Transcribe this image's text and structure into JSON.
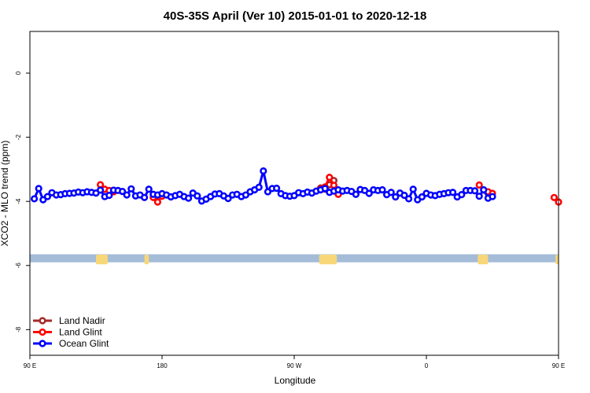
{
  "chart_data": {
    "type": "line",
    "title": "40S-35S April (Ver 10)   2015-01-01 to 2020-12-18",
    "xlabel": "Longitude",
    "ylabel": "XCO2 - MLO trend (ppm)",
    "xlim": [
      90,
      450
    ],
    "ylim": [
      -8.8,
      1.3
    ],
    "x_ticks": [
      {
        "value": 90,
        "label": "90 E"
      },
      {
        "value": 180,
        "label": "180"
      },
      {
        "value": 270,
        "label": "90 W"
      },
      {
        "value": 360,
        "label": "0"
      },
      {
        "value": 450,
        "label": "90 E"
      },
      {
        "value": 540,
        "label": "180"
      }
    ],
    "y_ticks": [
      {
        "value": 0,
        "label": "0"
      },
      {
        "value": -2,
        "label": "-2"
      },
      {
        "value": -4,
        "label": "-4"
      },
      {
        "value": -6,
        "label": "-6"
      },
      {
        "value": -8,
        "label": "-8"
      }
    ],
    "map_strip": {
      "ocean_color": "#a4bcd8",
      "land_color": "#f8d778",
      "y_range": [
        -5.9,
        -5.65
      ],
      "land_spans": [
        [
          135,
          143
        ],
        [
          168,
          171
        ],
        [
          287,
          299
        ],
        [
          395,
          402
        ],
        [
          448,
          450
        ]
      ]
    },
    "legend": {
      "position": "bottom-left"
    },
    "series": [
      {
        "name": "Land Nadir",
        "color": "#a52a2a",
        "segments": [
          [
            [
              288,
              -3.58
            ],
            [
              291,
              -3.62
            ],
            [
              294,
              -3.48
            ],
            [
              297,
              -3.35
            ],
            [
              300,
              -3.71
            ]
          ]
        ]
      },
      {
        "name": "Land Glint",
        "color": "#ff0000",
        "segments": [
          [
            [
              138,
              -3.48
            ],
            [
              141,
              -3.62
            ],
            [
              144,
              -3.66
            ],
            [
              147,
              -3.7
            ]
          ],
          [
            [
              174,
              -3.88
            ],
            [
              177,
              -4.02
            ],
            [
              180,
              -3.84
            ]
          ],
          [
            [
              288,
              -3.62
            ],
            [
              291,
              -3.55
            ],
            [
              294,
              -3.25
            ],
            [
              297,
              -3.5
            ],
            [
              300,
              -3.78
            ]
          ],
          [
            [
              396,
              -3.49
            ],
            [
              399,
              -3.65
            ],
            [
              402,
              -3.7
            ],
            [
              405,
              -3.75
            ]
          ],
          [
            [
              447,
              -3.88
            ],
            [
              450,
              -4.02
            ]
          ]
        ]
      },
      {
        "name": "Ocean Glint",
        "color": "#0000ff",
        "segments": [
          [
            [
              93,
              -3.92
            ],
            [
              96,
              -3.6
            ],
            [
              99,
              -3.95
            ],
            [
              102,
              -3.85
            ],
            [
              105,
              -3.73
            ],
            [
              108,
              -3.8
            ],
            [
              111,
              -3.79
            ],
            [
              114,
              -3.76
            ],
            [
              117,
              -3.75
            ],
            [
              120,
              -3.74
            ],
            [
              123,
              -3.71
            ],
            [
              126,
              -3.73
            ],
            [
              129,
              -3.7
            ],
            [
              132,
              -3.72
            ],
            [
              135,
              -3.74
            ],
            [
              138,
              -3.65
            ],
            [
              141,
              -3.85
            ],
            [
              144,
              -3.81
            ],
            [
              147,
              -3.65
            ],
            [
              150,
              -3.66
            ],
            [
              153,
              -3.69
            ],
            [
              156,
              -3.8
            ],
            [
              159,
              -3.61
            ],
            [
              162,
              -3.83
            ],
            [
              165,
              -3.8
            ],
            [
              168,
              -3.88
            ],
            [
              171,
              -3.62
            ],
            [
              174,
              -3.78
            ],
            [
              177,
              -3.8
            ],
            [
              180,
              -3.76
            ],
            [
              183,
              -3.8
            ],
            [
              186,
              -3.86
            ],
            [
              189,
              -3.82
            ],
            [
              192,
              -3.78
            ],
            [
              195,
              -3.85
            ],
            [
              198,
              -3.9
            ],
            [
              201,
              -3.74
            ],
            [
              204,
              -3.83
            ],
            [
              207,
              -3.99
            ],
            [
              210,
              -3.93
            ],
            [
              213,
              -3.85
            ],
            [
              216,
              -3.77
            ],
            [
              219,
              -3.76
            ],
            [
              222,
              -3.83
            ],
            [
              225,
              -3.91
            ],
            [
              228,
              -3.8
            ],
            [
              231,
              -3.78
            ],
            [
              234,
              -3.85
            ],
            [
              237,
              -3.8
            ],
            [
              240,
              -3.7
            ],
            [
              243,
              -3.64
            ],
            [
              246,
              -3.56
            ],
            [
              249,
              -3.05
            ],
            [
              252,
              -3.7
            ],
            [
              255,
              -3.6
            ],
            [
              258,
              -3.59
            ],
            [
              261,
              -3.76
            ],
            [
              264,
              -3.82
            ],
            [
              267,
              -3.84
            ],
            [
              270,
              -3.82
            ],
            [
              273,
              -3.73
            ],
            [
              276,
              -3.76
            ],
            [
              279,
              -3.71
            ],
            [
              282,
              -3.74
            ],
            [
              285,
              -3.68
            ],
            [
              288,
              -3.64
            ],
            [
              291,
              -3.6
            ],
            [
              294,
              -3.72
            ],
            [
              297,
              -3.68
            ],
            [
              300,
              -3.64
            ],
            [
              303,
              -3.68
            ],
            [
              306,
              -3.66
            ],
            [
              309,
              -3.69
            ],
            [
              312,
              -3.78
            ],
            [
              315,
              -3.63
            ],
            [
              318,
              -3.66
            ],
            [
              321,
              -3.75
            ],
            [
              324,
              -3.64
            ],
            [
              327,
              -3.66
            ],
            [
              330,
              -3.64
            ],
            [
              333,
              -3.79
            ],
            [
              336,
              -3.72
            ],
            [
              339,
              -3.86
            ],
            [
              342,
              -3.74
            ],
            [
              345,
              -3.81
            ],
            [
              348,
              -3.92
            ],
            [
              351,
              -3.62
            ],
            [
              354,
              -3.95
            ],
            [
              357,
              -3.86
            ],
            [
              360,
              -3.75
            ],
            [
              363,
              -3.8
            ],
            [
              366,
              -3.82
            ],
            [
              369,
              -3.78
            ],
            [
              372,
              -3.76
            ],
            [
              375,
              -3.73
            ],
            [
              378,
              -3.72
            ],
            [
              381,
              -3.86
            ],
            [
              384,
              -3.79
            ],
            [
              387,
              -3.66
            ],
            [
              390,
              -3.66
            ],
            [
              393,
              -3.67
            ],
            [
              396,
              -3.84
            ],
            [
              399,
              -3.64
            ],
            [
              402,
              -3.9
            ],
            [
              405,
              -3.85
            ]
          ]
        ]
      }
    ]
  }
}
